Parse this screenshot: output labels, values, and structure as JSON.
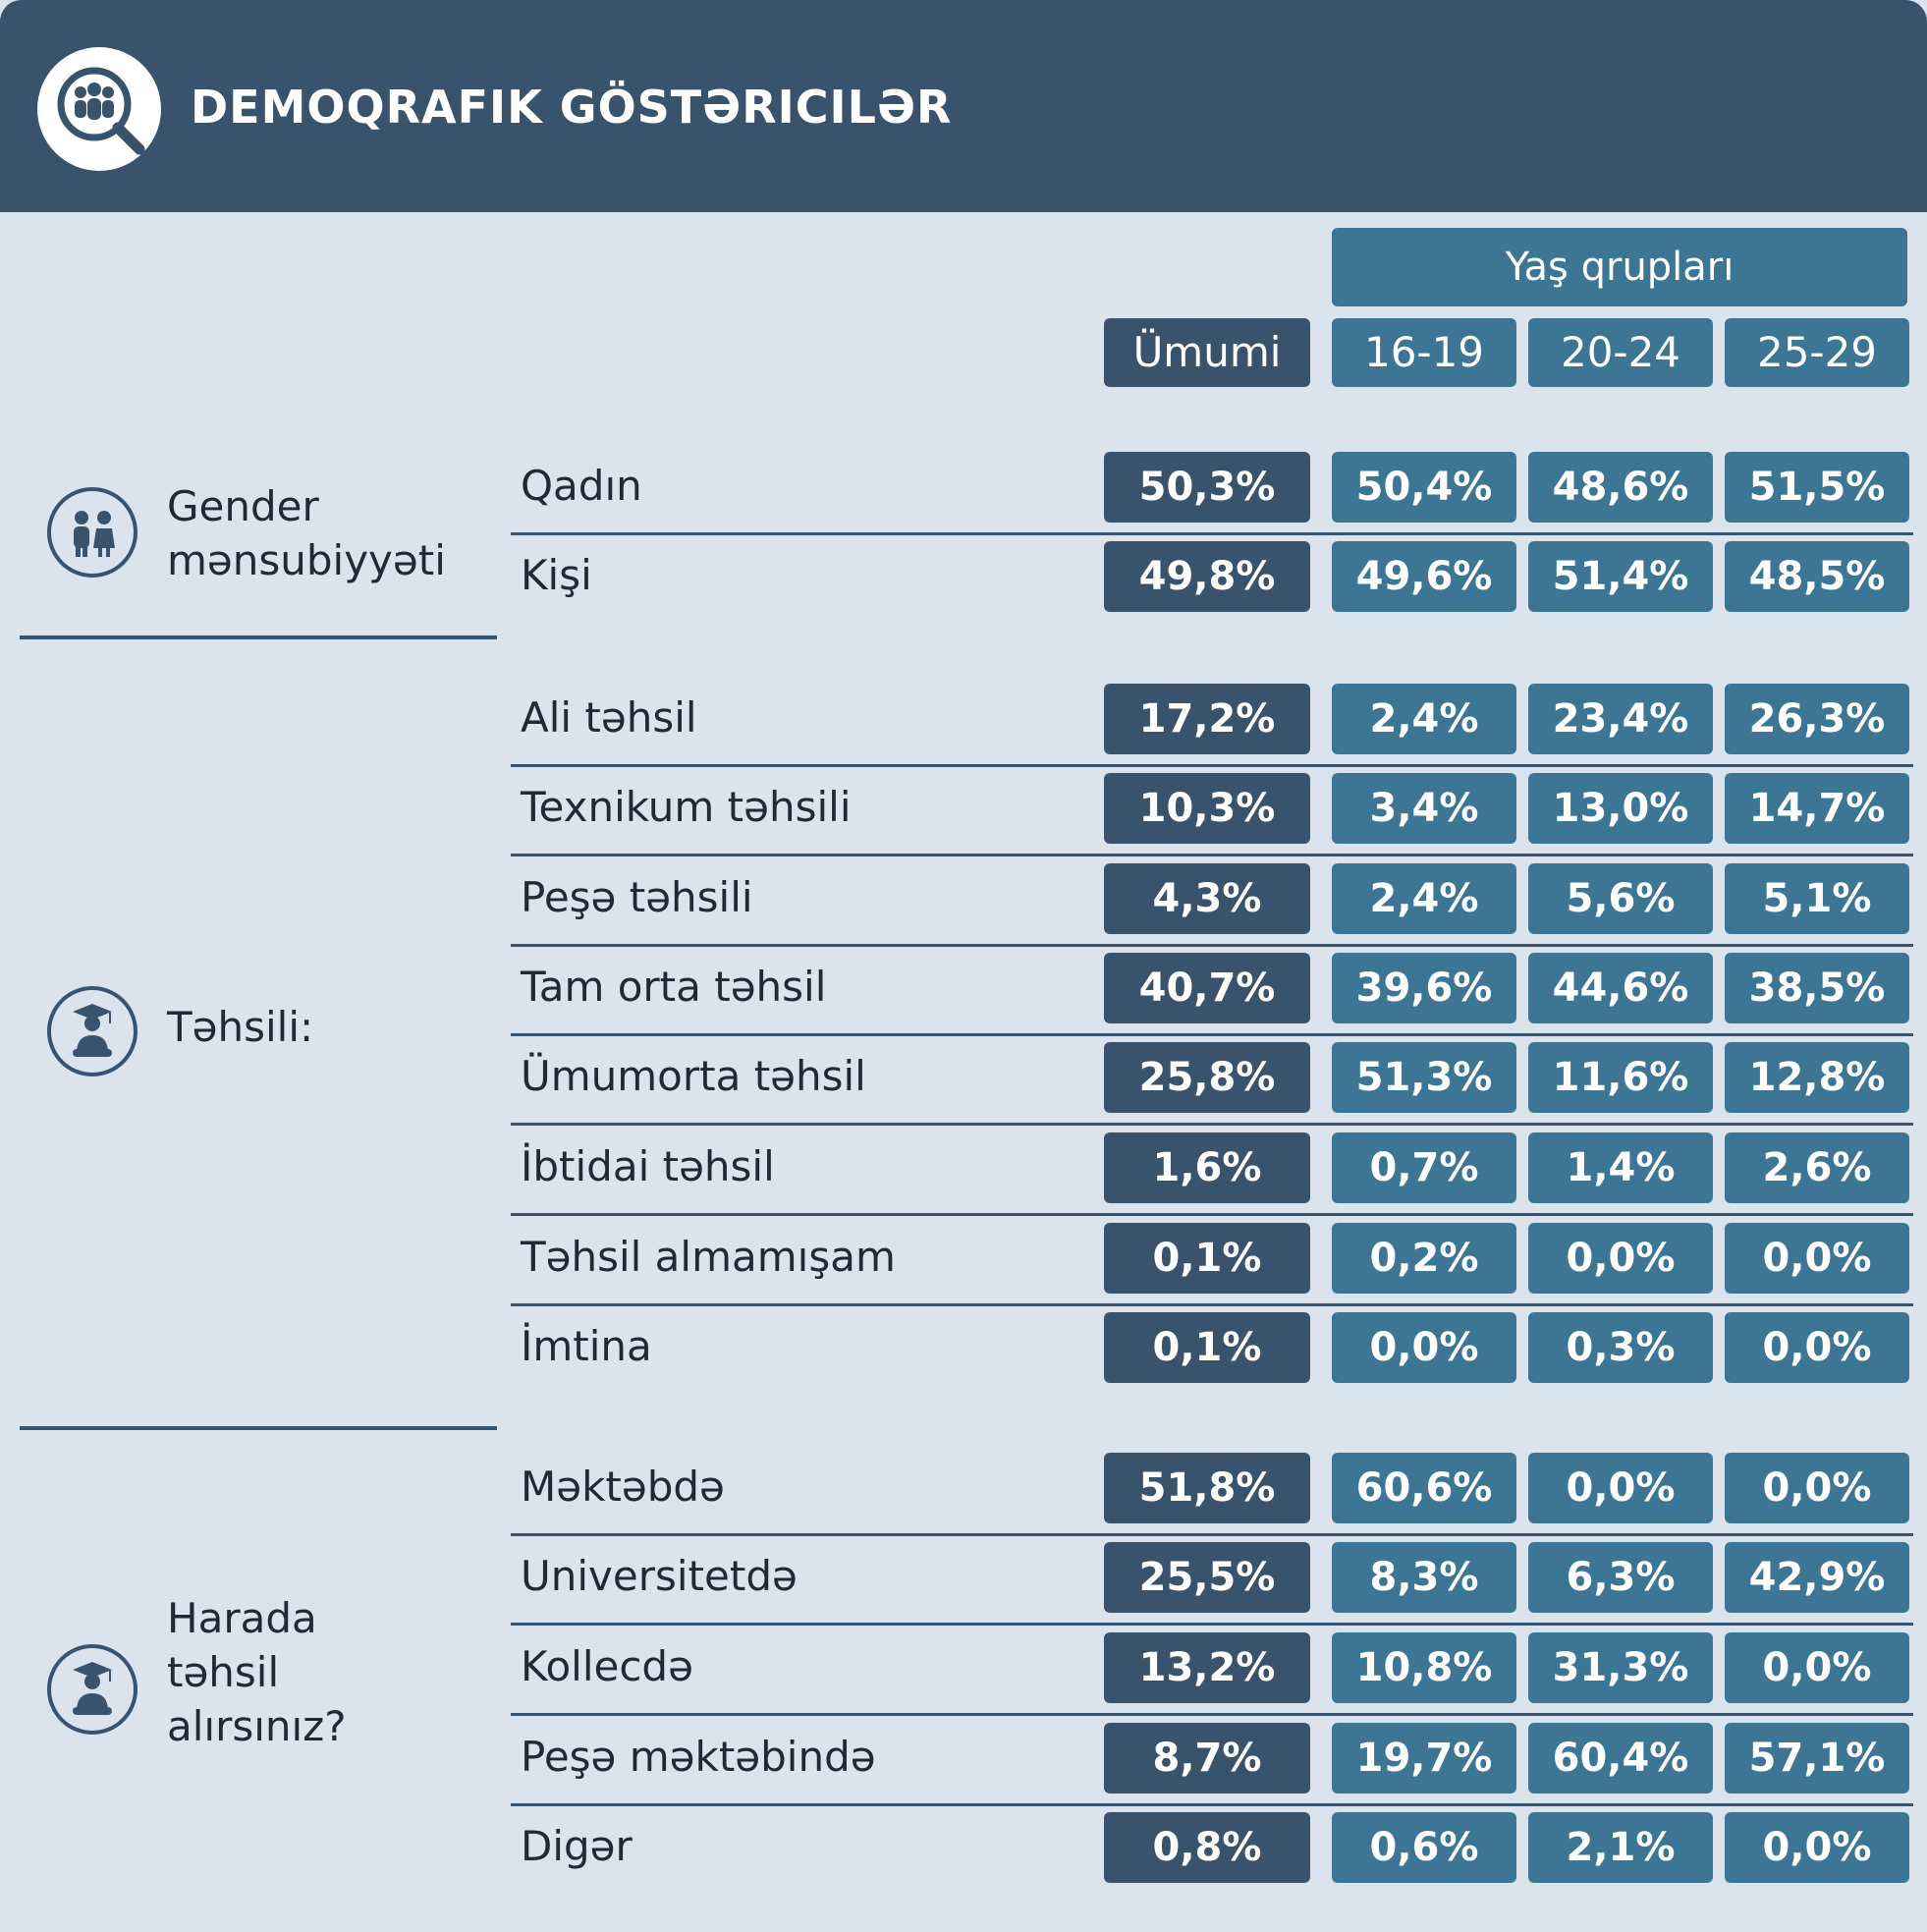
{
  "title": "DEMOQRAFIK GÖSTƏRICILƏR",
  "age_group_label": "Yaş qrupları",
  "columns": [
    "Ümumi",
    "16-19",
    "20-24",
    "25-29"
  ],
  "sections": [
    {
      "label": [
        "Gender",
        "mənsubiyyəti"
      ],
      "icon": "people-icon",
      "rows": [
        {
          "label": "Qadın",
          "values": [
            "50,3%",
            "50,4%",
            "48,6%",
            "51,5%"
          ]
        },
        {
          "label": "Kişi",
          "values": [
            "49,8%",
            "49,6%",
            "51,4%",
            "48,5%"
          ]
        }
      ]
    },
    {
      "label": [
        "Təhsili:"
      ],
      "icon": "graduate-icon",
      "rows": [
        {
          "label": "Ali təhsil",
          "values": [
            "17,2%",
            "2,4%",
            "23,4%",
            "26,3%"
          ]
        },
        {
          "label": "Texnikum təhsili",
          "values": [
            "10,3%",
            "3,4%",
            "13,0%",
            "14,7%"
          ]
        },
        {
          "label": "Peşə təhsili",
          "values": [
            "4,3%",
            "2,4%",
            "5,6%",
            "5,1%"
          ]
        },
        {
          "label": "Tam orta təhsil",
          "values": [
            "40,7%",
            "39,6%",
            "44,6%",
            "38,5%"
          ]
        },
        {
          "label": "Ümumorta təhsil",
          "values": [
            "25,8%",
            "51,3%",
            "11,6%",
            "12,8%"
          ]
        },
        {
          "label": "İbtidai təhsil",
          "values": [
            "1,6%",
            "0,7%",
            "1,4%",
            "2,6%"
          ]
        },
        {
          "label": "Təhsil almamışam",
          "values": [
            "0,1%",
            "0,2%",
            "0,0%",
            "0,0%"
          ]
        },
        {
          "label": "İmtina",
          "values": [
            "0,1%",
            "0,0%",
            "0,3%",
            "0,0%"
          ]
        }
      ]
    },
    {
      "label": [
        "Harada",
        "təhsil",
        "alırsınız?"
      ],
      "icon": "graduate-icon",
      "rows": [
        {
          "label": "Məktəbdə",
          "values": [
            "51,8%",
            "60,6%",
            "0,0%",
            "0,0%"
          ]
        },
        {
          "label": "Universitetdə",
          "values": [
            "25,5%",
            "8,3%",
            "6,3%",
            "42,9%"
          ]
        },
        {
          "label": "Kollecdə",
          "values": [
            "13,2%",
            "10,8%",
            "31,3%",
            "0,0%"
          ]
        },
        {
          "label": "Peşə məktəbində",
          "values": [
            "8,7%",
            "19,7%",
            "60,4%",
            "57,1%"
          ]
        },
        {
          "label": "Digər",
          "values": [
            "0,8%",
            "0,6%",
            "2,1%",
            "0,0%"
          ]
        }
      ]
    }
  ]
}
